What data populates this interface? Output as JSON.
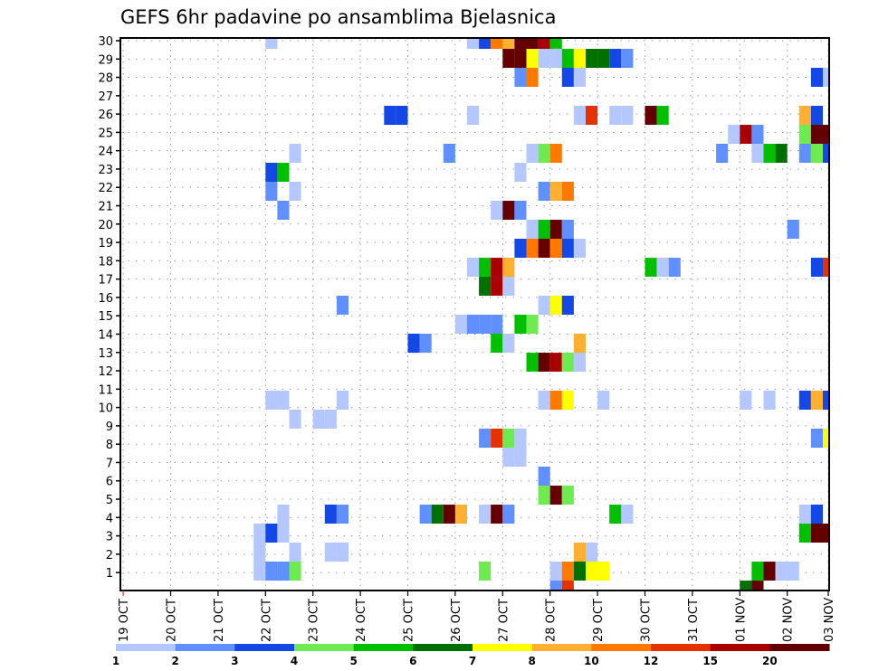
{
  "chart_data": {
    "type": "heatmap",
    "title": "GEFS 6hr padavine po ansamblima Bjelasnica",
    "xlabel": "",
    "ylabel": "",
    "x_unit": "6-hour steps from 19 OCT 00Z",
    "x_ticks": [
      "19 OCT",
      "20 OCT",
      "21 OCT",
      "22 OCT",
      "23 OCT",
      "24 OCT",
      "25 OCT",
      "26 OCT",
      "27 OCT",
      "28 OCT",
      "29 OCT",
      "30 OCT",
      "31 OCT",
      "01 NOV",
      "02 NOV",
      "03 NOV"
    ],
    "y_ticks": [
      1,
      2,
      3,
      4,
      5,
      6,
      7,
      8,
      9,
      10,
      11,
      12,
      13,
      14,
      15,
      16,
      17,
      18,
      19,
      20,
      21,
      22,
      23,
      24,
      25,
      26,
      27,
      28,
      29,
      30
    ],
    "grid": true,
    "legend": {
      "placement": "bottom",
      "labels": [
        "1",
        "2",
        "3",
        "4",
        "5",
        "6",
        "7",
        "8",
        "10",
        "12",
        "15",
        "20"
      ],
      "colors": [
        "#b4c8ff",
        "#6090ff",
        "#1448e6",
        "#6eeb50",
        "#00c000",
        "#007000",
        "#ffff00",
        "#ffb030",
        "#ff7800",
        "#e63200",
        "#aa0000",
        "#640000"
      ]
    },
    "cell_format": "[6h step index, colour class index into legend.colors]",
    "members": [
      {
        "member": 30,
        "cells": [
          [
            12,
            0
          ],
          [
            29,
            0
          ],
          [
            30,
            2
          ],
          [
            31,
            8
          ],
          [
            32,
            7
          ],
          [
            33,
            11
          ],
          [
            34,
            11
          ],
          [
            35,
            10
          ],
          [
            36,
            4
          ]
        ]
      },
      {
        "member": 29,
        "cells": [
          [
            32,
            11
          ],
          [
            33,
            11
          ],
          [
            34,
            6
          ],
          [
            35,
            0
          ],
          [
            36,
            0
          ],
          [
            37,
            4
          ],
          [
            38,
            6
          ],
          [
            39,
            5
          ],
          [
            40,
            5
          ],
          [
            41,
            2
          ],
          [
            42,
            1
          ]
        ]
      },
      {
        "member": 28,
        "cells": [
          [
            33,
            1
          ],
          [
            34,
            8
          ],
          [
            37,
            2
          ],
          [
            38,
            0
          ],
          [
            58,
            2
          ],
          [
            59,
            0
          ]
        ]
      },
      {
        "member": 26,
        "cells": [
          [
            22,
            2
          ],
          [
            23,
            2
          ],
          [
            29,
            0
          ],
          [
            38,
            0
          ],
          [
            39,
            9
          ],
          [
            41,
            0
          ],
          [
            42,
            0
          ],
          [
            44,
            11
          ],
          [
            45,
            4
          ],
          [
            57,
            7
          ],
          [
            58,
            2
          ]
        ]
      },
      {
        "member": 25,
        "cells": [
          [
            51,
            0
          ],
          [
            52,
            10
          ],
          [
            53,
            1
          ],
          [
            57,
            3
          ],
          [
            58,
            11
          ],
          [
            59,
            11
          ]
        ]
      },
      {
        "member": 24,
        "cells": [
          [
            14,
            0
          ],
          [
            27,
            1
          ],
          [
            34,
            0
          ],
          [
            35,
            3
          ],
          [
            36,
            8
          ],
          [
            50,
            1
          ],
          [
            53,
            0
          ],
          [
            54,
            4
          ],
          [
            55,
            5
          ],
          [
            57,
            1
          ],
          [
            58,
            3
          ],
          [
            59,
            2
          ]
        ]
      },
      {
        "member": 23,
        "cells": [
          [
            12,
            2
          ],
          [
            13,
            4
          ],
          [
            33,
            0
          ]
        ]
      },
      {
        "member": 22,
        "cells": [
          [
            12,
            1
          ],
          [
            14,
            0
          ],
          [
            35,
            1
          ],
          [
            36,
            7
          ],
          [
            37,
            8
          ]
        ]
      },
      {
        "member": 21,
        "cells": [
          [
            13,
            1
          ],
          [
            31,
            0
          ],
          [
            32,
            11
          ],
          [
            33,
            1
          ]
        ]
      },
      {
        "member": 20,
        "cells": [
          [
            34,
            0
          ],
          [
            35,
            4
          ],
          [
            36,
            11
          ],
          [
            37,
            1
          ],
          [
            56,
            1
          ]
        ]
      },
      {
        "member": 19,
        "cells": [
          [
            33,
            2
          ],
          [
            34,
            8
          ],
          [
            35,
            11
          ],
          [
            36,
            8
          ],
          [
            37,
            2
          ],
          [
            38,
            0
          ]
        ]
      },
      {
        "member": 18,
        "cells": [
          [
            29,
            0
          ],
          [
            30,
            4
          ],
          [
            31,
            10
          ],
          [
            32,
            7
          ],
          [
            44,
            4
          ],
          [
            45,
            0
          ],
          [
            46,
            1
          ],
          [
            58,
            2
          ],
          [
            59,
            9
          ]
        ]
      },
      {
        "member": 17,
        "cells": [
          [
            30,
            5
          ],
          [
            31,
            10
          ],
          [
            32,
            0
          ]
        ]
      },
      {
        "member": 16,
        "cells": [
          [
            18,
            1
          ],
          [
            35,
            0
          ],
          [
            36,
            6
          ],
          [
            37,
            2
          ]
        ]
      },
      {
        "member": 15,
        "cells": [
          [
            28,
            0
          ],
          [
            29,
            1
          ],
          [
            30,
            1
          ],
          [
            31,
            1
          ],
          [
            33,
            4
          ],
          [
            34,
            3
          ]
        ]
      },
      {
        "member": 14,
        "cells": [
          [
            24,
            2
          ],
          [
            25,
            1
          ],
          [
            31,
            4
          ],
          [
            32,
            0
          ],
          [
            38,
            7
          ]
        ]
      },
      {
        "member": 13,
        "cells": [
          [
            34,
            4
          ],
          [
            35,
            11
          ],
          [
            36,
            10
          ],
          [
            37,
            3
          ],
          [
            38,
            0
          ]
        ]
      },
      {
        "member": 11,
        "cells": [
          [
            12,
            0
          ],
          [
            13,
            0
          ],
          [
            18,
            0
          ],
          [
            35,
            0
          ],
          [
            36,
            8
          ],
          [
            37,
            6
          ],
          [
            40,
            0
          ],
          [
            52,
            0
          ],
          [
            54,
            0
          ],
          [
            57,
            2
          ],
          [
            58,
            7
          ],
          [
            59,
            2
          ]
        ]
      },
      {
        "member": 10,
        "cells": [
          [
            14,
            0
          ],
          [
            16,
            0
          ],
          [
            17,
            0
          ]
        ]
      },
      {
        "member": 9,
        "cells": [
          [
            30,
            1
          ],
          [
            31,
            9
          ],
          [
            32,
            3
          ],
          [
            33,
            0
          ],
          [
            58,
            1
          ],
          [
            59,
            6
          ]
        ]
      },
      {
        "member": 8,
        "cells": [
          [
            32,
            0
          ],
          [
            33,
            0
          ]
        ]
      },
      {
        "member": 7,
        "cells": [
          [
            35,
            1
          ]
        ]
      },
      {
        "member": 6,
        "cells": [
          [
            35,
            3
          ],
          [
            36,
            11
          ],
          [
            37,
            3
          ]
        ]
      },
      {
        "member": 5,
        "cells": [
          [
            13,
            0
          ],
          [
            17,
            2
          ],
          [
            18,
            1
          ],
          [
            25,
            1
          ],
          [
            26,
            5
          ],
          [
            27,
            11
          ],
          [
            28,
            7
          ],
          [
            30,
            0
          ],
          [
            31,
            11
          ],
          [
            32,
            1
          ],
          [
            41,
            4
          ],
          [
            42,
            0
          ],
          [
            57,
            0
          ],
          [
            58,
            2
          ]
        ]
      },
      {
        "member": 4,
        "cells": [
          [
            11,
            0
          ],
          [
            12,
            2
          ],
          [
            13,
            0
          ],
          [
            57,
            4
          ],
          [
            58,
            11
          ],
          [
            59,
            11
          ]
        ]
      },
      {
        "member": 3,
        "cells": [
          [
            11,
            0
          ],
          [
            14,
            0
          ],
          [
            17,
            0
          ],
          [
            18,
            0
          ],
          [
            38,
            7
          ],
          [
            39,
            0
          ]
        ]
      },
      {
        "member": 2,
        "cells": [
          [
            11,
            0
          ],
          [
            12,
            1
          ],
          [
            13,
            1
          ],
          [
            14,
            3
          ],
          [
            30,
            3
          ],
          [
            36,
            0
          ],
          [
            37,
            8
          ],
          [
            38,
            5
          ],
          [
            39,
            6
          ],
          [
            40,
            6
          ],
          [
            53,
            4
          ],
          [
            54,
            11
          ],
          [
            55,
            0
          ],
          [
            56,
            0
          ]
        ]
      },
      {
        "member": 1,
        "cells": [
          [
            36,
            1
          ],
          [
            37,
            9
          ],
          [
            52,
            5
          ],
          [
            53,
            11
          ]
        ]
      }
    ]
  }
}
